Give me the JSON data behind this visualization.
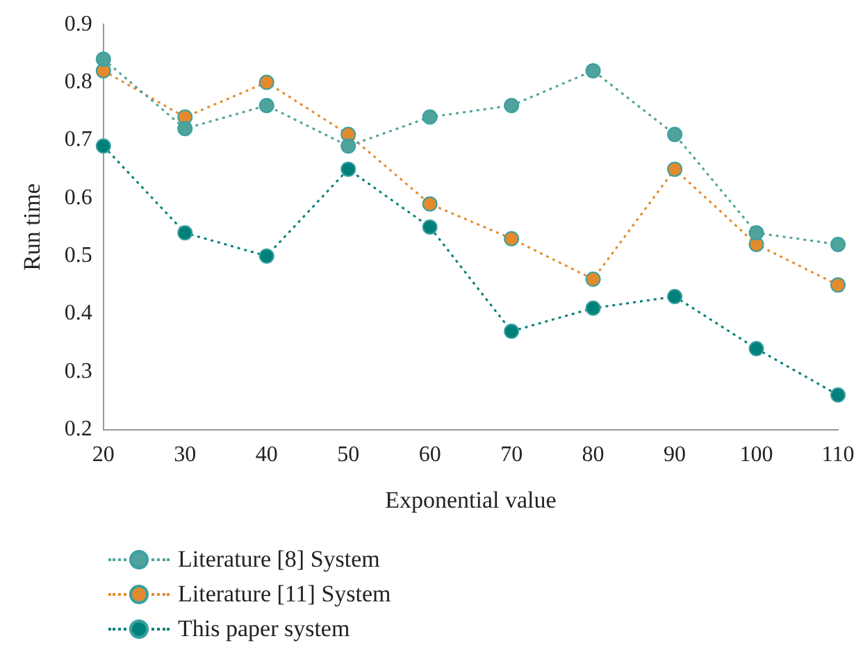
{
  "chart_data": {
    "type": "line",
    "xlabel": "Exponential value",
    "ylabel": "Run time",
    "categories": [
      "20",
      "30",
      "40",
      "50",
      "60",
      "70",
      "80",
      "90",
      "100",
      "110"
    ],
    "series": [
      {
        "name": "Literature [8] System",
        "color": "#4fa39a",
        "values": [
          0.84,
          0.72,
          0.76,
          0.69,
          0.74,
          0.76,
          0.82,
          0.71,
          0.54,
          0.52
        ]
      },
      {
        "name": "Literature [11] System",
        "color": "#e38b2c",
        "values": [
          0.82,
          0.74,
          0.8,
          0.71,
          0.59,
          0.53,
          0.46,
          0.65,
          0.52,
          0.45
        ]
      },
      {
        "name": "This paper system",
        "color": "#00807a",
        "values": [
          0.69,
          0.54,
          0.5,
          0.65,
          0.55,
          0.37,
          0.41,
          0.43,
          0.34,
          0.26
        ]
      }
    ],
    "ylim": [
      0.2,
      0.9
    ],
    "yticks": [
      0.2,
      0.3,
      0.4,
      0.5,
      0.6,
      0.7,
      0.8,
      0.9
    ],
    "grid": false,
    "legend": "bottom left",
    "marker": "circle",
    "line_style": "dotted"
  }
}
